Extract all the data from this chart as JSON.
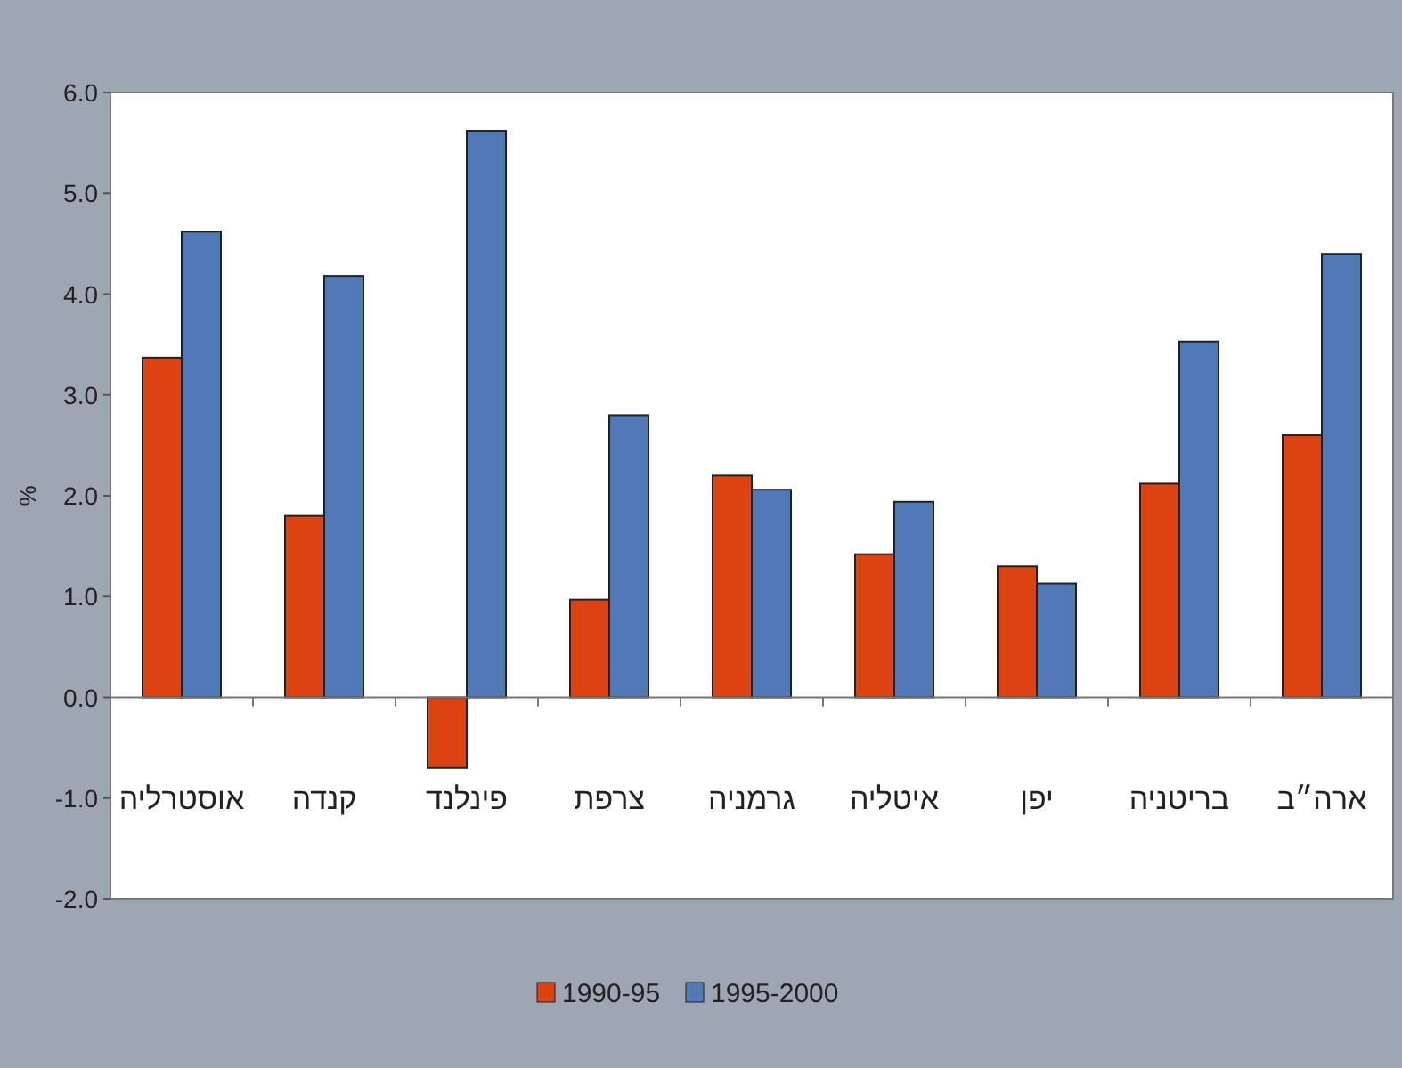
{
  "chart_data": {
    "type": "bar",
    "ylabel": "%",
    "legend": "bottom",
    "categories": [
      "אוסטרליה",
      "קנדה",
      "פינלנד",
      "צרפת",
      "גרמניה",
      "איטליה",
      "יפן",
      "בריטניה",
      "ארה״ב"
    ],
    "series": [
      {
        "name": "1990-95",
        "color": "#dc4312",
        "values": [
          3.37,
          1.8,
          -0.7,
          0.97,
          2.2,
          1.42,
          1.3,
          2.12,
          2.6
        ]
      },
      {
        "name": "1995-2000",
        "color": "#5079b6",
        "values": [
          4.62,
          4.18,
          5.62,
          2.8,
          2.06,
          1.94,
          1.13,
          3.53,
          4.4
        ]
      }
    ],
    "ylim": [
      -2,
      6
    ],
    "yticks": [
      {
        "value": -2,
        "label": "-2.0"
      },
      {
        "value": -1,
        "label": "-1.0"
      },
      {
        "value": 0,
        "label": "0.0"
      },
      {
        "value": 1,
        "label": "1.0"
      },
      {
        "value": 2,
        "label": "2.0"
      },
      {
        "value": 3,
        "label": "3.0"
      },
      {
        "value": 4,
        "label": "4.0"
      },
      {
        "value": 5,
        "label": "5.0"
      },
      {
        "value": 6,
        "label": "6.0"
      }
    ]
  }
}
